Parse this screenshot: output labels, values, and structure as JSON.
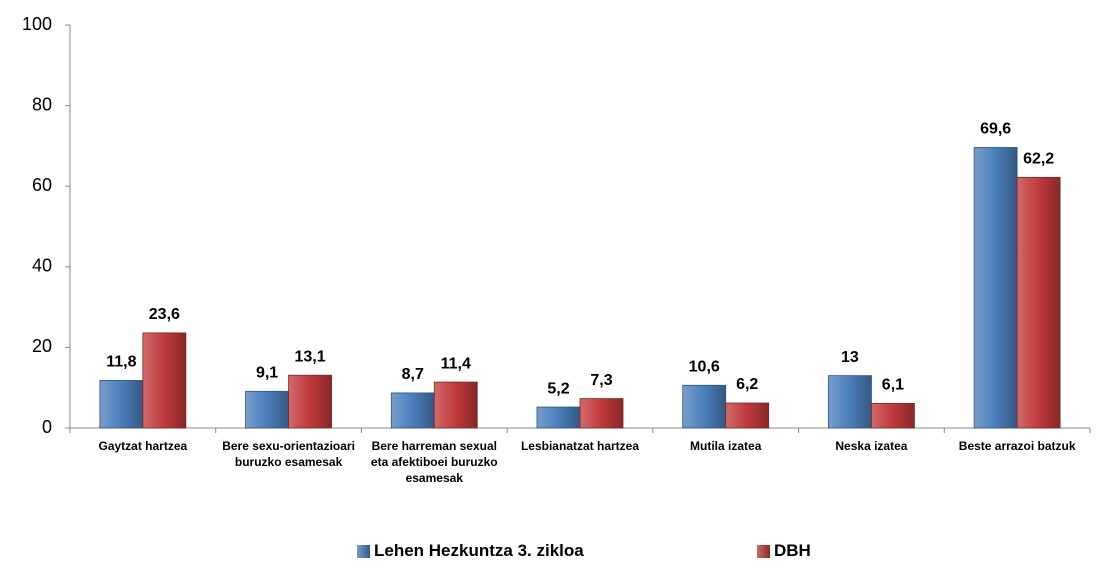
{
  "chart_data": {
    "type": "bar",
    "categories": [
      "Gaytzat hartzea",
      "Bere sexu-orientazioari buruzko esamesak",
      "Bere harreman sexual eta afektiboei buruzko esamesak",
      "Lesbianatzat hartzea",
      "Mutila izatea",
      "Neska izatea",
      "Beste arrazoi batzuk"
    ],
    "series": [
      {
        "name": "Lehen Hezkuntza 3. zikloa",
        "color": "#4a7ebb",
        "values": [
          11.8,
          9.1,
          8.7,
          5.2,
          10.6,
          13,
          69.6
        ],
        "value_labels": [
          "11,8",
          "9,1",
          "8,7",
          "5,2",
          "10,6",
          "13",
          "69,6"
        ]
      },
      {
        "name": "DBH",
        "color": "#c0393b",
        "values": [
          23.6,
          13.1,
          11.4,
          7.3,
          6.2,
          6.1,
          62.2
        ],
        "value_labels": [
          "23,6",
          "13,1",
          "11,4",
          "7,3",
          "6,2",
          "6,1",
          "62,2"
        ]
      }
    ],
    "ylim": [
      0,
      100
    ],
    "yticks": [
      0,
      20,
      40,
      60,
      80,
      100
    ],
    "grid": false,
    "legend": "bottom"
  }
}
